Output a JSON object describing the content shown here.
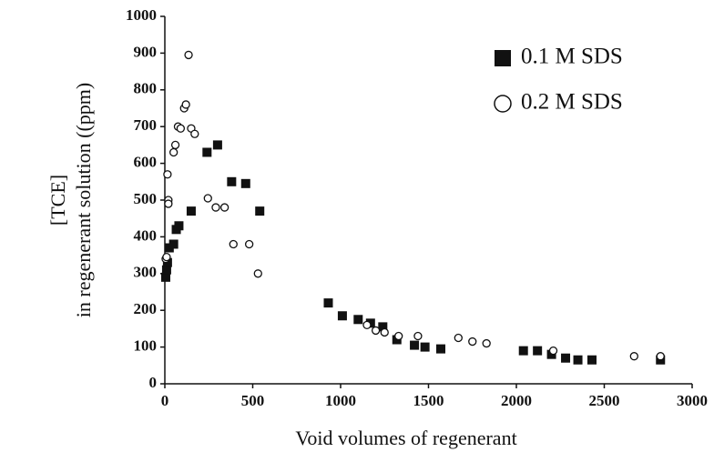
{
  "chart_data": {
    "type": "scatter",
    "xlabel": "Void volumes of regenerant",
    "ylabel": [
      "[TCE]",
      "in regenerant solution ((ppm)"
    ],
    "xlim": [
      0,
      3000
    ],
    "xticks": [
      0,
      500,
      1000,
      1500,
      2000,
      2500,
      3000
    ],
    "ylim": [
      0,
      1000
    ],
    "yticks": [
      0,
      100,
      200,
      300,
      400,
      500,
      600,
      700,
      800,
      900,
      1000
    ],
    "legend": "upper right",
    "series": [
      {
        "name": "0.1 M SDS",
        "marker": "square",
        "color": "#111111",
        "x": [
          5,
          10,
          15,
          25,
          50,
          65,
          80,
          150,
          240,
          300,
          380,
          460,
          540,
          930,
          1010,
          1100,
          1170,
          1240,
          1320,
          1420,
          1480,
          1570,
          2040,
          2120,
          2200,
          2280,
          2350,
          2430,
          2820
        ],
        "values": [
          290,
          310,
          330,
          370,
          380,
          420,
          430,
          470,
          630,
          650,
          550,
          545,
          470,
          220,
          185,
          175,
          165,
          155,
          120,
          105,
          100,
          95,
          90,
          90,
          80,
          70,
          65,
          65,
          65
        ]
      },
      {
        "name": "0.2 M SDS",
        "marker": "circle",
        "color": "#111111",
        "x": [
          5,
          10,
          15,
          20,
          20,
          50,
          60,
          75,
          90,
          110,
          120,
          135,
          150,
          170,
          245,
          290,
          340,
          390,
          480,
          530,
          1150,
          1200,
          1250,
          1330,
          1440,
          1670,
          1750,
          1830,
          2210,
          2670,
          2820
        ],
        "values": [
          340,
          345,
          570,
          500,
          490,
          630,
          650,
          700,
          695,
          750,
          760,
          895,
          695,
          680,
          505,
          480,
          480,
          380,
          380,
          300,
          160,
          145,
          140,
          130,
          130,
          125,
          115,
          110,
          90,
          75,
          75
        ]
      }
    ]
  }
}
